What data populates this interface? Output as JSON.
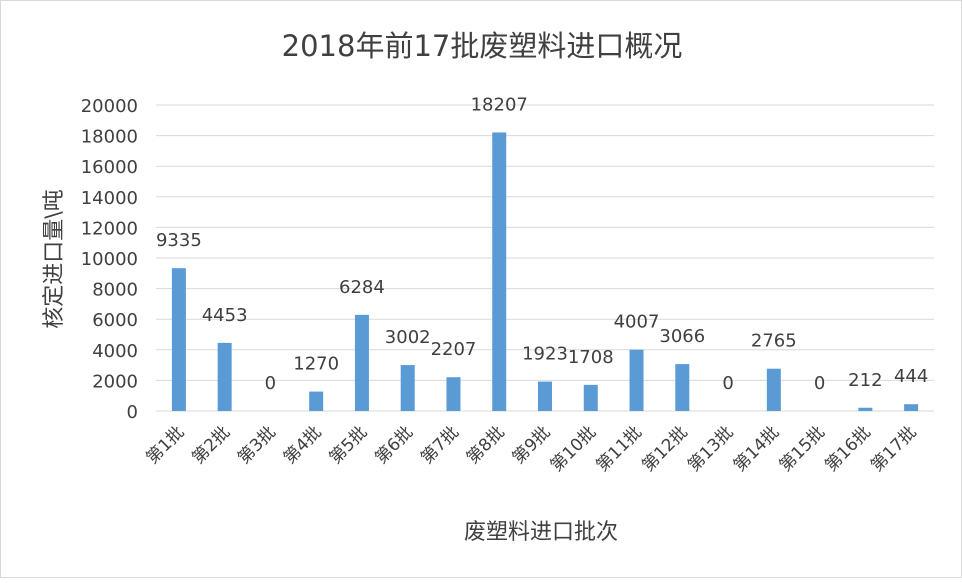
{
  "chart_data": {
    "type": "bar",
    "title": "2018年前17批废塑料进口概况",
    "xlabel": "废塑料进口批次",
    "ylabel": "核定进口量\\吨",
    "ylim": [
      0,
      20000
    ],
    "yticks": [
      0,
      2000,
      4000,
      6000,
      8000,
      10000,
      12000,
      14000,
      16000,
      18000,
      20000
    ],
    "grid": true,
    "categories": [
      "第1批",
      "第2批",
      "第3批",
      "第4批",
      "第5批",
      "第6批",
      "第7批",
      "第8批",
      "第9批",
      "第10批",
      "第11批",
      "第12批",
      "第13批",
      "第14批",
      "第15批",
      "第16批",
      "第17批"
    ],
    "values": [
      9335,
      4453,
      0,
      1270,
      6284,
      3002,
      2207,
      18207,
      1923,
      1708,
      4007,
      3066,
      0,
      2765,
      0,
      212,
      444
    ],
    "bar_color": "#5b9bd5"
  }
}
